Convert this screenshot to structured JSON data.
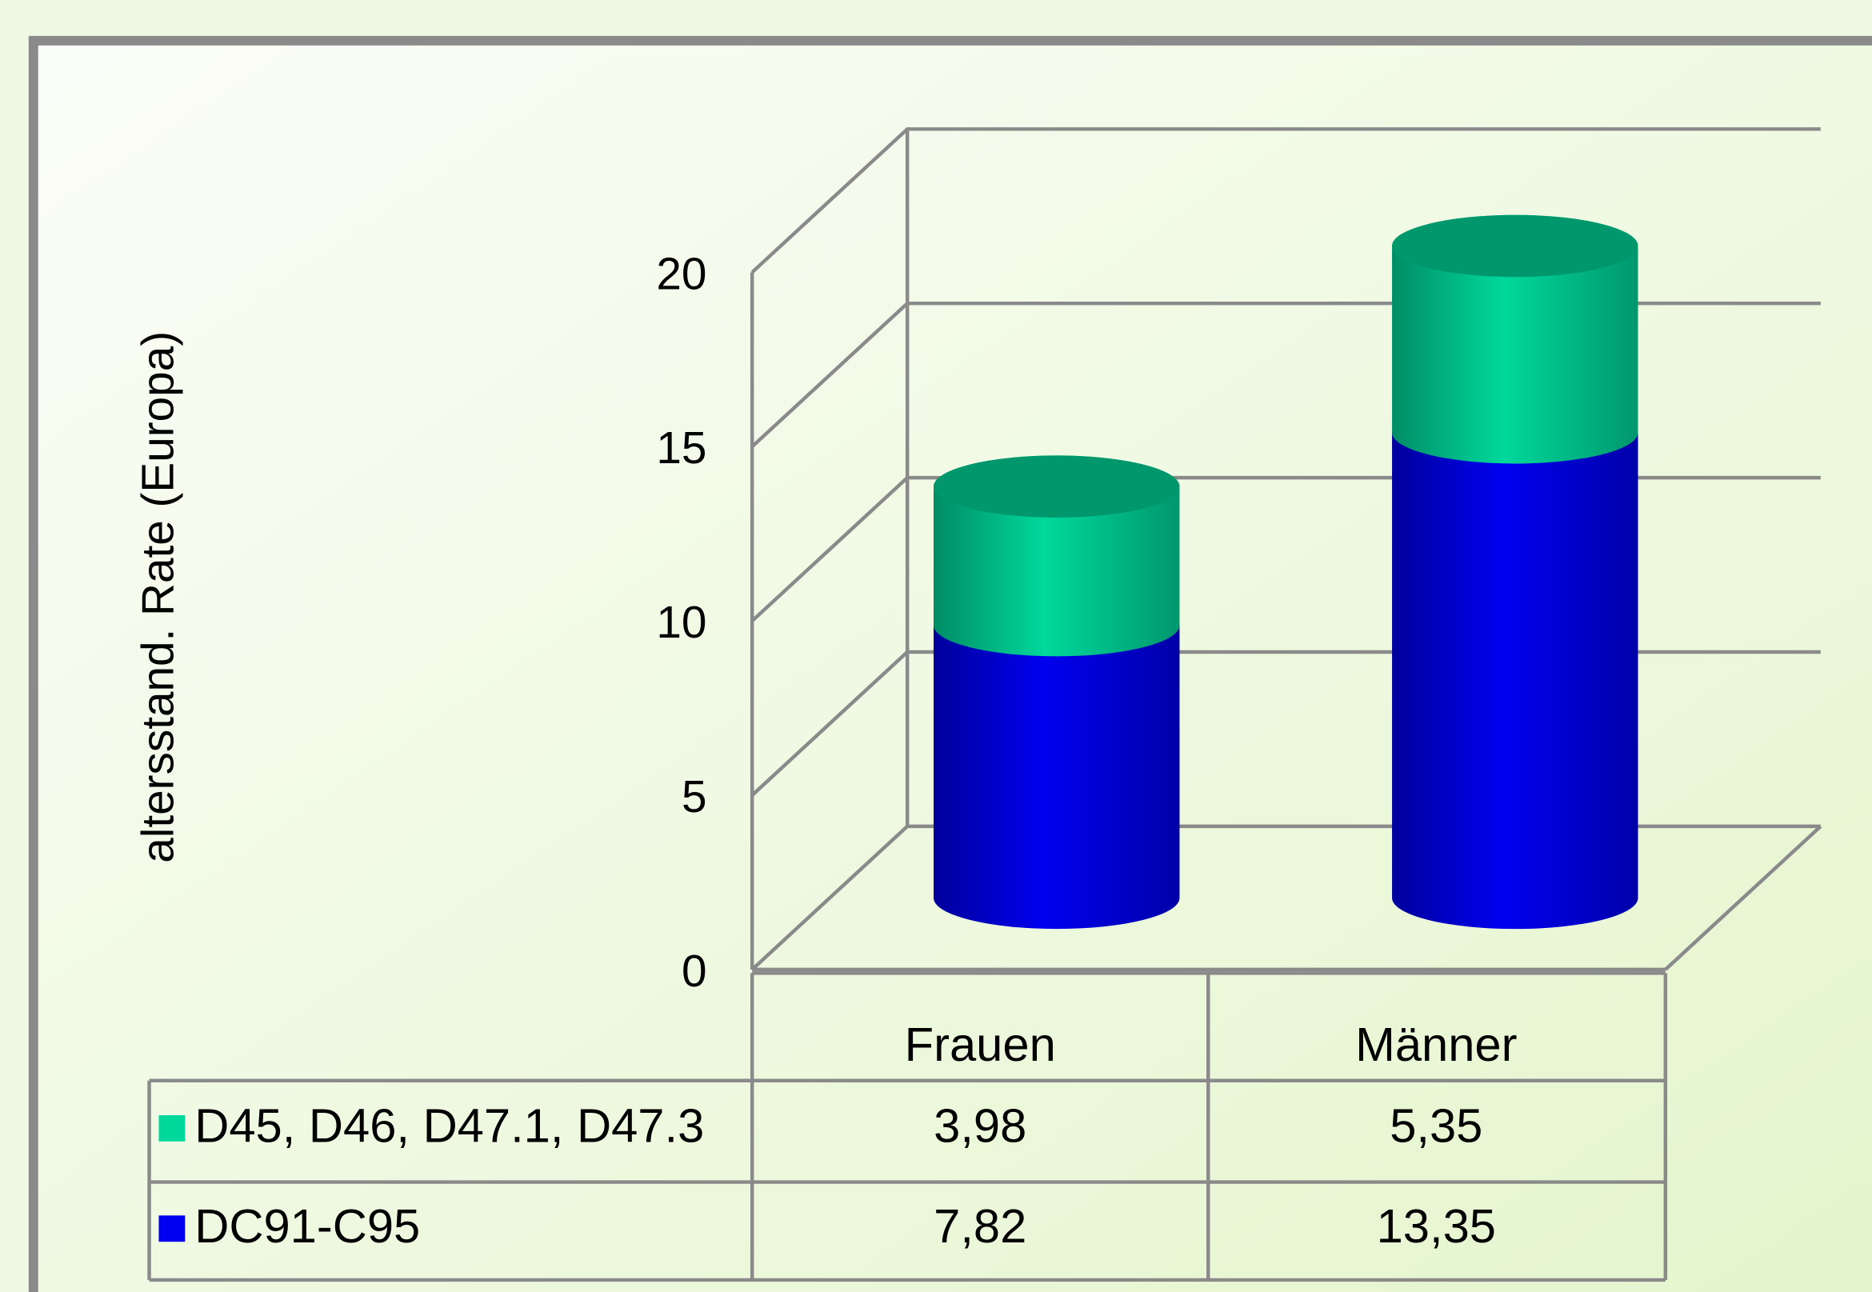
{
  "chart_data": {
    "type": "bar3d-stacked",
    "y_label": "altersstand. Rate (Europa)",
    "categories": [
      "Frauen",
      "Männer"
    ],
    "series": [
      {
        "name": "D45, D46, D47.1, D47.3",
        "color": "#00d89c",
        "values": [
          3.98,
          5.35
        ],
        "value_labels": [
          "3,98",
          "5,35"
        ]
      },
      {
        "name": "DC91-C95",
        "color": "#0000f0",
        "values": [
          7.82,
          13.35
        ],
        "value_labels": [
          "7,82",
          "13,35"
        ]
      }
    ],
    "ylim": [
      0,
      20
    ],
    "yticks": [
      0,
      5,
      10,
      15,
      20
    ],
    "grid": true
  }
}
